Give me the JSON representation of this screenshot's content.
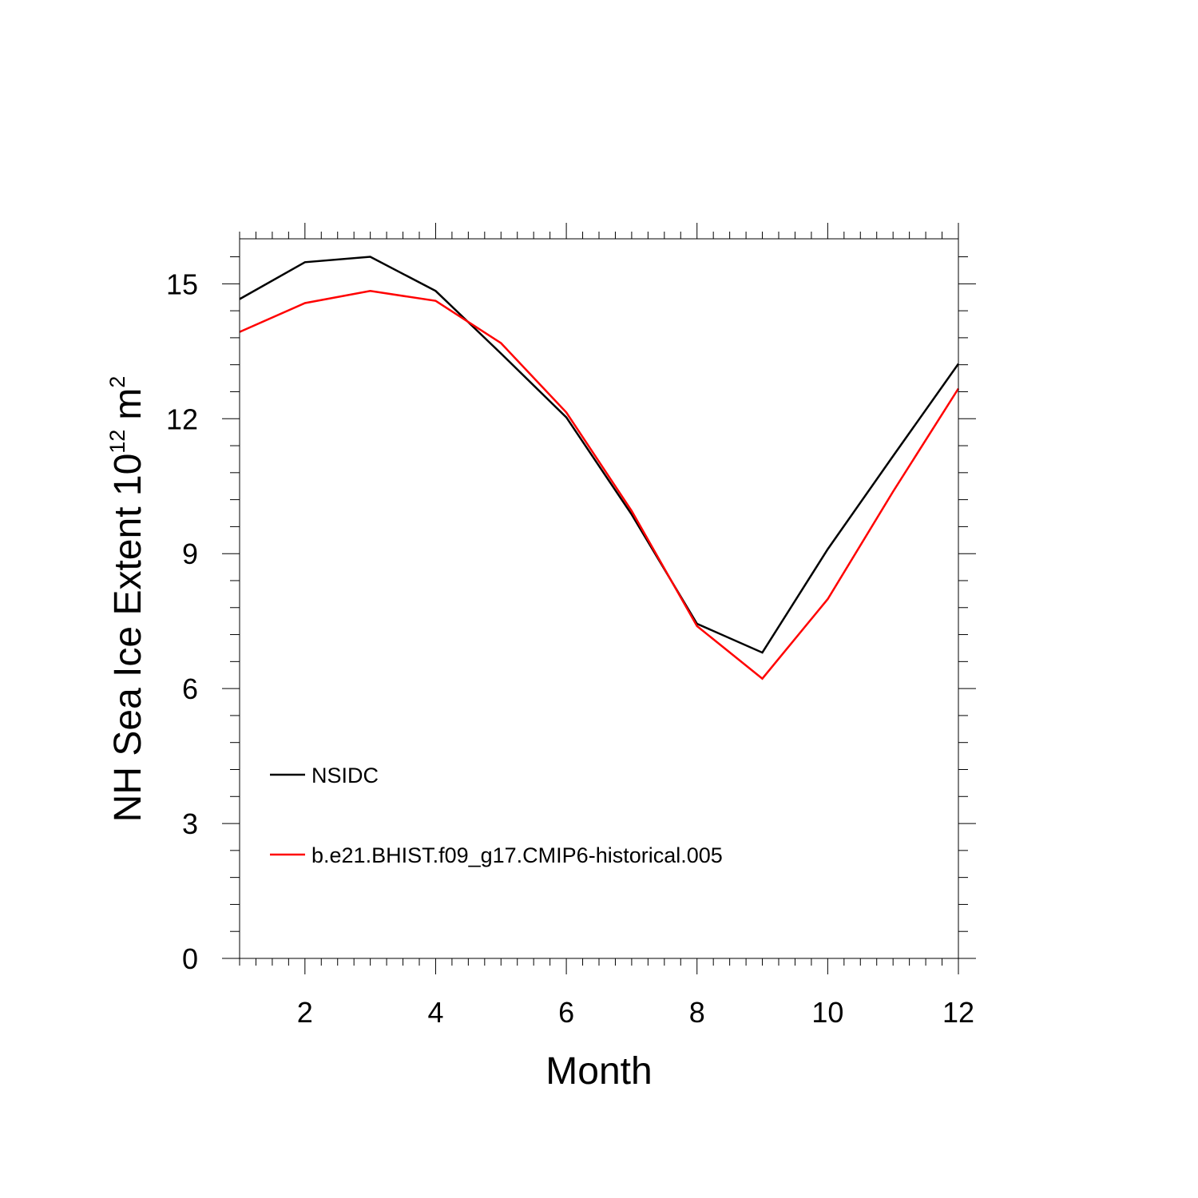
{
  "chart_data": {
    "type": "line",
    "xlabel": "Month",
    "ylabel": {
      "main": "NH Sea Ice Extent 10",
      "exponent": "12",
      "unit": "m",
      "unit_exponent": "2"
    },
    "xlim": [
      1,
      12
    ],
    "ylim": [
      0,
      16
    ],
    "x_ticks": [
      2,
      4,
      6,
      8,
      10,
      12
    ],
    "y_ticks": [
      0,
      3,
      6,
      9,
      12,
      15
    ],
    "grid": false,
    "legend_position": "lower-left",
    "x": [
      1,
      2,
      3,
      4,
      5,
      6,
      7,
      8,
      9,
      10,
      11,
      12
    ],
    "series": [
      {
        "name": "NSIDC",
        "color": "#000000",
        "values": [
          14.66,
          15.48,
          15.6,
          14.84,
          13.45,
          12.03,
          9.87,
          7.44,
          6.8,
          9.1,
          11.17,
          13.22
        ]
      },
      {
        "name": "b.e21.BHIST.f09_g17.CMIP6-historical.005",
        "color": "#ff0000",
        "values": [
          13.93,
          14.57,
          14.84,
          14.62,
          13.68,
          12.14,
          9.95,
          7.39,
          6.22,
          7.99,
          10.38,
          12.67
        ]
      }
    ]
  }
}
